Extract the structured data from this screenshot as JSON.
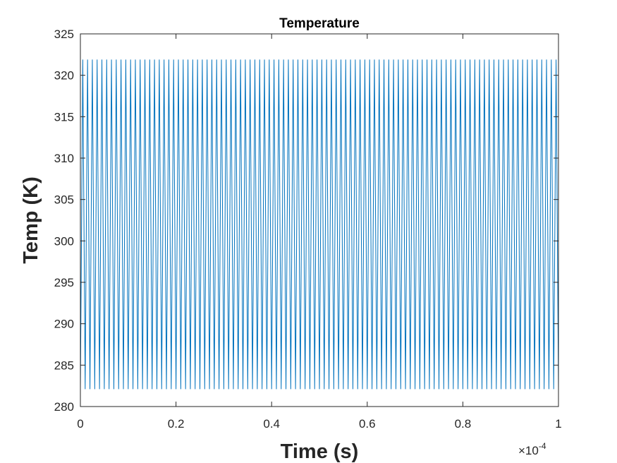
{
  "chart_data": {
    "type": "line",
    "title": "Temperature",
    "xlabel": "Time (s)",
    "ylabel": "Temp (K)",
    "x_exponent_label": "×10",
    "x_exponent_value": "-4",
    "x_scale_factor": 0.0001,
    "xlim": [
      0,
      1
    ],
    "ylim": [
      280,
      325
    ],
    "xticks": [
      0,
      0.2,
      0.4,
      0.6,
      0.8,
      1
    ],
    "xtick_labels": [
      "0",
      "0.2",
      "0.4",
      "0.6",
      "0.8",
      "1"
    ],
    "yticks": [
      280,
      285,
      290,
      295,
      300,
      305,
      310,
      315,
      320,
      325
    ],
    "ytick_labels": [
      "280",
      "285",
      "290",
      "295",
      "300",
      "305",
      "310",
      "315",
      "320",
      "325"
    ],
    "grid": false,
    "series": [
      {
        "color": "#0072BD",
        "waveform": "triangle",
        "start_value": 282.1,
        "min": 282.1,
        "max": 321.9,
        "cycles": 100
      }
    ]
  }
}
